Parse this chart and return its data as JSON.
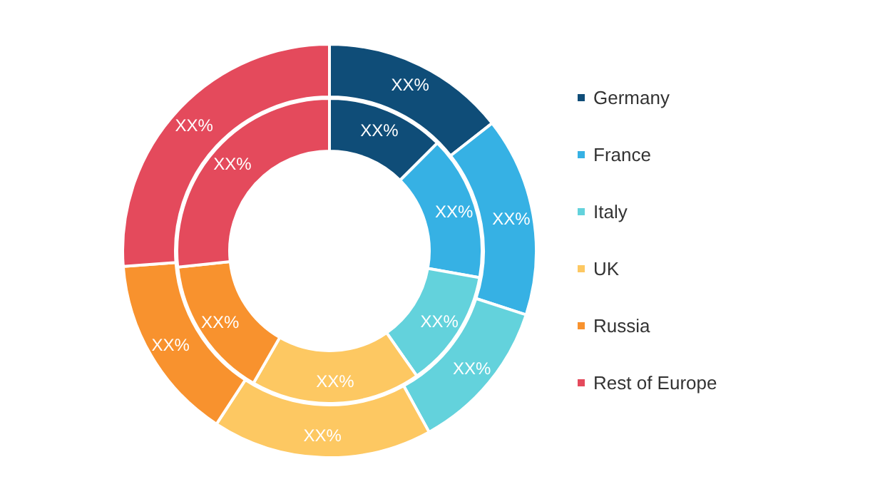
{
  "chart_data": {
    "type": "donut",
    "categories": [
      "Germany",
      "France",
      "Italy",
      "UK",
      "Russia",
      "Rest of Europe"
    ],
    "colors": [
      "#0f4d78",
      "#36b1e4",
      "#63d2dc",
      "#fdc862",
      "#f8922e",
      "#e44a5c"
    ],
    "series": [
      {
        "values": [
          14.4,
          15.6,
          12,
          17.2,
          14.6,
          26.2
        ],
        "value_labels": [
          "XX%",
          "XX%",
          "XX%",
          "XX%",
          "XX%",
          "XX%"
        ]
      },
      {
        "values": [
          12.5,
          15.3,
          12.5,
          18,
          15,
          26.7
        ],
        "value_labels": [
          "XX%",
          "XX%",
          "XX%",
          "XX%",
          "XX%",
          "XX%"
        ]
      }
    ],
    "legend": "right"
  }
}
